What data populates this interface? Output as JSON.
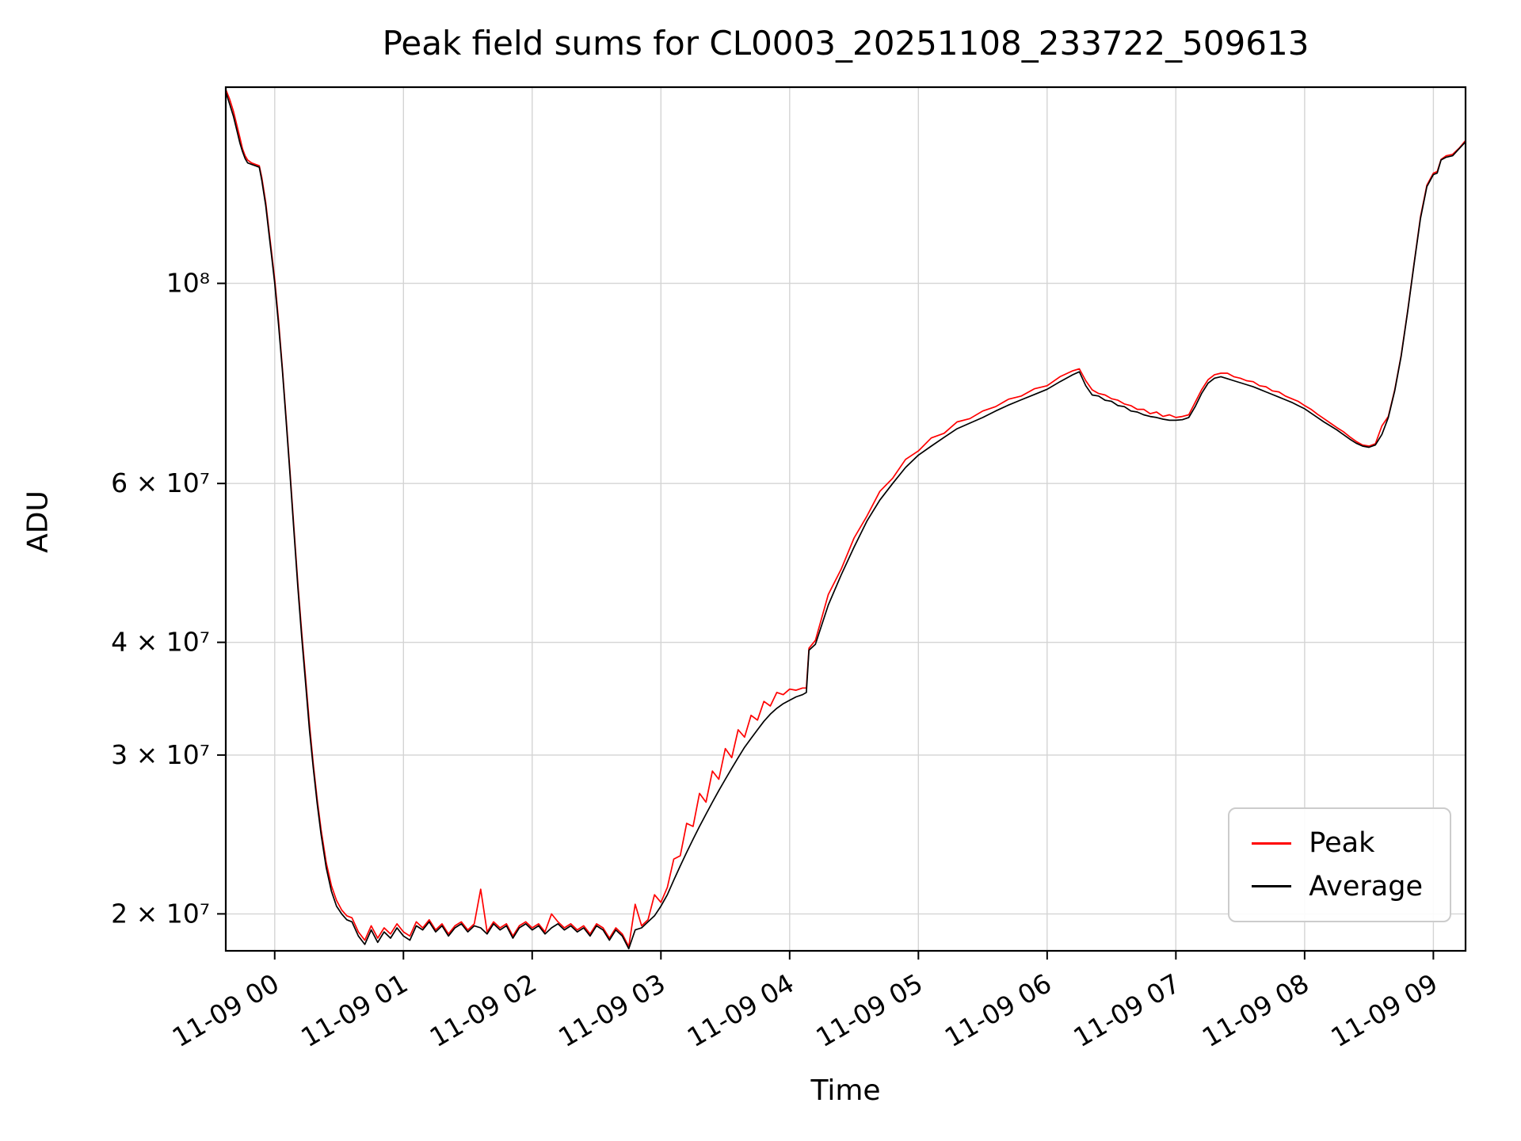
{
  "chart_data": {
    "type": "line",
    "title": "Peak field sums for CL0003_20251108_233722_509613",
    "xlabel": "Time",
    "ylabel": "ADU",
    "yscale": "log",
    "grid": true,
    "xlim": [
      -0.38,
      9.25
    ],
    "ylim": [
      18200000.0,
      165000000.0
    ],
    "x_unit": "hours after 2025-11-09 00:00",
    "x_ticks": [
      0,
      1,
      2,
      3,
      4,
      5,
      6,
      7,
      8,
      9
    ],
    "x_tick_labels": [
      "11-09 00",
      "11-09 01",
      "11-09 02",
      "11-09 03",
      "11-09 04",
      "11-09 05",
      "11-09 06",
      "11-09 07",
      "11-09 08",
      "11-09 09"
    ],
    "y_ticks": [
      20000000.0,
      30000000.0,
      40000000.0,
      60000000.0,
      100000000.0
    ],
    "y_tick_labels": [
      "2 × 10⁷",
      "3 × 10⁷",
      "4 × 10⁷",
      "6 × 10⁷",
      "10⁸"
    ],
    "legend": {
      "position": "lower right"
    },
    "series": [
      {
        "name": "Peak",
        "color": "#ff0000",
        "column": 1
      },
      {
        "name": "Average",
        "color": "#000000",
        "column": 2
      }
    ],
    "columns": [
      "t_hours",
      "Peak_ADU",
      "Average_ADU"
    ],
    "points": [
      [
        -0.38,
        164000000.0,
        163000000.0
      ],
      [
        -0.35,
        160000000.0,
        158000000.0
      ],
      [
        -0.32,
        155000000.0,
        153000000.0
      ],
      [
        -0.29,
        149000000.0,
        147000000.0
      ],
      [
        -0.27,
        145000000.0,
        143000000.0
      ],
      [
        -0.25,
        141000000.0,
        140000000.0
      ],
      [
        -0.23,
        138500000.0,
        137500000.0
      ],
      [
        -0.21,
        137000000.0,
        136000000.0
      ],
      [
        -0.18,
        136000000.0,
        135500000.0
      ],
      [
        -0.15,
        135500000.0,
        135000000.0
      ],
      [
        -0.12,
        135000000.0,
        134500000.0
      ],
      [
        -0.1,
        131000000.0,
        130000000.0
      ],
      [
        -0.07,
        123000000.0,
        122000000.0
      ],
      [
        -0.04,
        113000000.0,
        112000000.0
      ],
      [
        -0.02,
        107000000.0,
        106000000.0
      ],
      [
        0.0,
        101000000.0,
        100000000.0
      ],
      [
        0.03,
        91000000.0,
        90000000.0
      ],
      [
        0.06,
        80500000.0,
        80000000.0
      ],
      [
        0.09,
        70500000.0,
        70000000.0
      ],
      [
        0.12,
        61500000.0,
        61000000.0
      ],
      [
        0.15,
        53500000.0,
        53000000.0
      ],
      [
        0.18,
        46500000.0,
        46000000.0
      ],
      [
        0.21,
        41000000.0,
        40500000.0
      ],
      [
        0.24,
        36500000.0,
        36000000.0
      ],
      [
        0.27,
        32500000.0,
        32000000.0
      ],
      [
        0.3,
        29300000.0,
        29000000.0
      ],
      [
        0.33,
        26800000.0,
        26500000.0
      ],
      [
        0.36,
        24800000.0,
        24500000.0
      ],
      [
        0.4,
        22800000.0,
        22500000.0
      ],
      [
        0.44,
        21500000.0,
        21200000.0
      ],
      [
        0.48,
        20700000.0,
        20400000.0
      ],
      [
        0.52,
        20200000.0,
        20000000.0
      ],
      [
        0.56,
        19900000.0,
        19700000.0
      ],
      [
        0.6,
        19800000.0,
        19600000.0
      ],
      [
        0.65,
        19100000.0,
        18900000.0
      ],
      [
        0.7,
        18700000.0,
        18500000.0
      ],
      [
        0.75,
        19400000.0,
        19200000.0
      ],
      [
        0.8,
        18800000.0,
        18600000.0
      ],
      [
        0.85,
        19300000.0,
        19100000.0
      ],
      [
        0.9,
        19000000.0,
        18800000.0
      ],
      [
        0.95,
        19500000.0,
        19300000.0
      ],
      [
        1.0,
        19100000.0,
        18900000.0
      ],
      [
        1.05,
        18900000.0,
        18700000.0
      ],
      [
        1.1,
        19600000.0,
        19400000.0
      ],
      [
        1.15,
        19300000.0,
        19200000.0
      ],
      [
        1.2,
        19700000.0,
        19600000.0
      ],
      [
        1.25,
        19200000.0,
        19100000.0
      ],
      [
        1.3,
        19500000.0,
        19400000.0
      ],
      [
        1.35,
        19000000.0,
        18900000.0
      ],
      [
        1.4,
        19400000.0,
        19300000.0
      ],
      [
        1.45,
        19600000.0,
        19500000.0
      ],
      [
        1.5,
        19200000.0,
        19100000.0
      ],
      [
        1.55,
        19500000.0,
        19400000.0
      ],
      [
        1.6,
        21300000.0,
        19300000.0
      ],
      [
        1.65,
        19100000.0,
        19000000.0
      ],
      [
        1.7,
        19600000.0,
        19500000.0
      ],
      [
        1.75,
        19300000.0,
        19200000.0
      ],
      [
        1.8,
        19500000.0,
        19400000.0
      ],
      [
        1.85,
        18900000.0,
        18800000.0
      ],
      [
        1.9,
        19400000.0,
        19300000.0
      ],
      [
        1.95,
        19600000.0,
        19500000.0
      ],
      [
        2.0,
        19300000.0,
        19200000.0
      ],
      [
        2.05,
        19500000.0,
        19400000.0
      ],
      [
        2.1,
        19100000.0,
        19000000.0
      ],
      [
        2.15,
        20000000.0,
        19300000.0
      ],
      [
        2.2,
        19600000.0,
        19500000.0
      ],
      [
        2.25,
        19300000.0,
        19200000.0
      ],
      [
        2.3,
        19500000.0,
        19400000.0
      ],
      [
        2.35,
        19200000.0,
        19100000.0
      ],
      [
        2.4,
        19400000.0,
        19300000.0
      ],
      [
        2.45,
        19000000.0,
        18900000.0
      ],
      [
        2.5,
        19500000.0,
        19400000.0
      ],
      [
        2.55,
        19300000.0,
        19200000.0
      ],
      [
        2.6,
        18800000.0,
        18700000.0
      ],
      [
        2.65,
        19300000.0,
        19200000.0
      ],
      [
        2.7,
        19000000.0,
        18900000.0
      ],
      [
        2.75,
        18400000.0,
        18300000.0
      ],
      [
        2.8,
        20500000.0,
        19200000.0
      ],
      [
        2.85,
        19400000.0,
        19300000.0
      ],
      [
        2.9,
        19700000.0,
        19600000.0
      ],
      [
        2.95,
        21000000.0,
        19900000.0
      ],
      [
        3.0,
        20600000.0,
        20400000.0
      ],
      [
        3.05,
        21400000.0,
        21000000.0
      ],
      [
        3.1,
        23000000.0,
        21800000.0
      ],
      [
        3.15,
        23200000.0,
        22600000.0
      ],
      [
        3.2,
        25200000.0,
        23400000.0
      ],
      [
        3.25,
        25000000.0,
        24200000.0
      ],
      [
        3.3,
        27200000.0,
        25000000.0
      ],
      [
        3.35,
        26600000.0,
        25800000.0
      ],
      [
        3.4,
        28800000.0,
        26600000.0
      ],
      [
        3.45,
        28200000.0,
        27400000.0
      ],
      [
        3.5,
        30500000.0,
        28200000.0
      ],
      [
        3.55,
        29800000.0,
        29000000.0
      ],
      [
        3.6,
        32000000.0,
        29800000.0
      ],
      [
        3.65,
        31400000.0,
        30600000.0
      ],
      [
        3.7,
        33200000.0,
        31300000.0
      ],
      [
        3.75,
        32800000.0,
        32000000.0
      ],
      [
        3.8,
        34400000.0,
        32700000.0
      ],
      [
        3.85,
        34000000.0,
        33300000.0
      ],
      [
        3.9,
        35200000.0,
        33800000.0
      ],
      [
        3.95,
        35000000.0,
        34200000.0
      ],
      [
        4.0,
        35500000.0,
        34500000.0
      ],
      [
        4.05,
        35400000.0,
        34800000.0
      ],
      [
        4.1,
        35600000.0,
        35000000.0
      ],
      [
        4.13,
        35600000.0,
        35200000.0
      ],
      [
        4.15,
        39400000.0,
        39200000.0
      ],
      [
        4.2,
        40200000.0,
        39800000.0
      ],
      [
        4.3,
        45200000.0,
        44000000.0
      ],
      [
        4.4,
        48200000.0,
        47500000.0
      ],
      [
        4.5,
        52200000.0,
        51000000.0
      ],
      [
        4.6,
        55200000.0,
        54500000.0
      ],
      [
        4.7,
        58800000.0,
        57500000.0
      ],
      [
        4.8,
        60800000.0,
        60000000.0
      ],
      [
        4.9,
        63800000.0,
        62500000.0
      ],
      [
        5.0,
        65200000.0,
        64500000.0
      ],
      [
        5.1,
        67400000.0,
        66000000.0
      ],
      [
        5.2,
        68200000.0,
        67500000.0
      ],
      [
        5.3,
        70200000.0,
        69000000.0
      ],
      [
        5.4,
        70800000.0,
        70000000.0
      ],
      [
        5.5,
        72200000.0,
        71000000.0
      ],
      [
        5.6,
        73000000.0,
        72200000.0
      ],
      [
        5.7,
        74400000.0,
        73300000.0
      ],
      [
        5.8,
        75000000.0,
        74300000.0
      ],
      [
        5.9,
        76400000.0,
        75300000.0
      ],
      [
        6.0,
        77000000.0,
        76300000.0
      ],
      [
        6.1,
        78800000.0,
        77800000.0
      ],
      [
        6.2,
        80000000.0,
        79200000.0
      ],
      [
        6.25,
        80400000.0,
        79800000.0
      ],
      [
        6.3,
        78000000.0,
        77000000.0
      ],
      [
        6.35,
        76200000.0,
        75200000.0
      ],
      [
        6.4,
        75500000.0,
        75000000.0
      ],
      [
        6.45,
        75200000.0,
        74200000.0
      ],
      [
        6.5,
        74500000.0,
        74000000.0
      ],
      [
        6.55,
        74200000.0,
        73200000.0
      ],
      [
        6.6,
        73500000.0,
        73000000.0
      ],
      [
        6.65,
        73200000.0,
        72200000.0
      ],
      [
        6.7,
        72500000.0,
        72000000.0
      ],
      [
        6.75,
        72500000.0,
        71500000.0
      ],
      [
        6.8,
        71700000.0,
        71200000.0
      ],
      [
        6.85,
        72000000.0,
        71000000.0
      ],
      [
        6.9,
        71200000.0,
        70700000.0
      ],
      [
        6.95,
        71500000.0,
        70500000.0
      ],
      [
        7.0,
        71000000.0,
        70500000.0
      ],
      [
        7.05,
        71200000.0,
        70600000.0
      ],
      [
        7.1,
        71500000.0,
        71000000.0
      ],
      [
        7.15,
        73800000.0,
        73000000.0
      ],
      [
        7.2,
        76200000.0,
        75500000.0
      ],
      [
        7.25,
        78200000.0,
        77500000.0
      ],
      [
        7.3,
        79200000.0,
        78500000.0
      ],
      [
        7.35,
        79500000.0,
        78800000.0
      ],
      [
        7.4,
        79500000.0,
        78400000.0
      ],
      [
        7.45,
        78800000.0,
        78000000.0
      ],
      [
        7.5,
        78500000.0,
        77600000.0
      ],
      [
        7.55,
        78000000.0,
        77200000.0
      ],
      [
        7.6,
        77800000.0,
        76800000.0
      ],
      [
        7.65,
        77000000.0,
        76300000.0
      ],
      [
        7.7,
        76800000.0,
        75800000.0
      ],
      [
        7.75,
        76000000.0,
        75300000.0
      ],
      [
        7.8,
        75800000.0,
        74800000.0
      ],
      [
        7.85,
        75000000.0,
        74300000.0
      ],
      [
        7.9,
        74500000.0,
        73800000.0
      ],
      [
        7.95,
        74000000.0,
        73200000.0
      ],
      [
        8.0,
        73200000.0,
        72600000.0
      ],
      [
        8.05,
        72500000.0,
        71800000.0
      ],
      [
        8.1,
        71600000.0,
        71000000.0
      ],
      [
        8.15,
        70800000.0,
        70200000.0
      ],
      [
        8.2,
        70000000.0,
        69500000.0
      ],
      [
        8.25,
        69200000.0,
        68800000.0
      ],
      [
        8.3,
        68500000.0,
        68000000.0
      ],
      [
        8.35,
        67600000.0,
        67200000.0
      ],
      [
        8.4,
        66800000.0,
        66500000.0
      ],
      [
        8.45,
        66200000.0,
        66000000.0
      ],
      [
        8.5,
        66000000.0,
        65800000.0
      ],
      [
        8.55,
        66400000.0,
        66200000.0
      ],
      [
        8.6,
        69500000.0,
        68000000.0
      ],
      [
        8.65,
        71200000.0,
        71000000.0
      ],
      [
        8.7,
        76200000.0,
        76000000.0
      ],
      [
        8.75,
        83200000.0,
        83000000.0
      ],
      [
        8.8,
        93200000.0,
        93000000.0
      ],
      [
        8.85,
        105200000.0,
        105000000.0
      ],
      [
        8.9,
        118500000.0,
        118000000.0
      ],
      [
        8.95,
        128500000.0,
        128000000.0
      ],
      [
        9.0,
        132500000.0,
        132000000.0
      ],
      [
        9.03,
        133000000.0,
        132500000.0
      ],
      [
        9.06,
        137200000.0,
        137000000.0
      ],
      [
        9.1,
        138500000.0,
        138000000.0
      ],
      [
        9.15,
        139000000.0,
        138500000.0
      ],
      [
        9.2,
        141200000.0,
        141000000.0
      ],
      [
        9.25,
        144000000.0,
        143500000.0
      ]
    ]
  },
  "legend_items": {
    "peak": {
      "label": "Peak"
    },
    "average": {
      "label": "Average"
    }
  }
}
